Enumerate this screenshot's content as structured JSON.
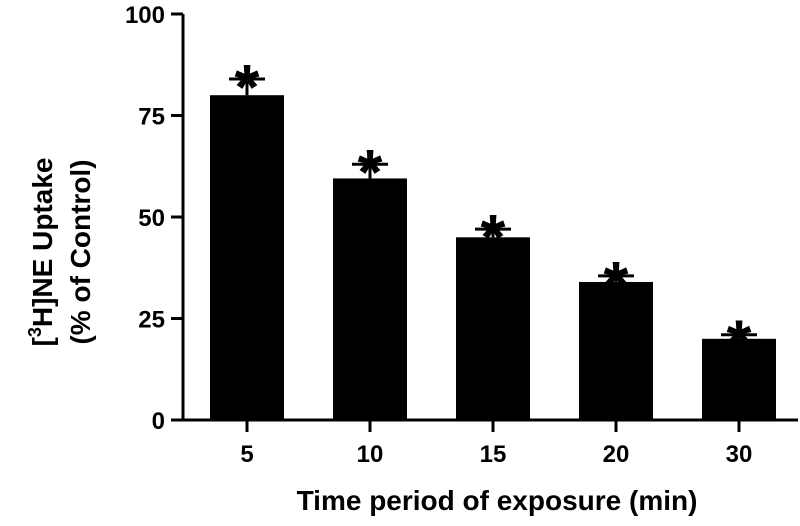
{
  "chart_data": {
    "type": "bar",
    "categories": [
      "5",
      "10",
      "15",
      "20",
      "30"
    ],
    "values": [
      80,
      59.5,
      45,
      34,
      20
    ],
    "errors": [
      4,
      3.5,
      2,
      1.5,
      1
    ],
    "significance": [
      "*",
      "*",
      "*",
      "*",
      "*"
    ],
    "xlabel": "Time period of exposure (min)",
    "ylabel": {
      "prefix": "[",
      "superscript": "3",
      "main": "H]NE Uptake",
      "line2": "(% of Control)"
    },
    "ylim": [
      0,
      100
    ],
    "yticks": [
      0,
      25,
      50,
      75,
      100
    ],
    "bar_color": "#000000",
    "grid": false
  }
}
